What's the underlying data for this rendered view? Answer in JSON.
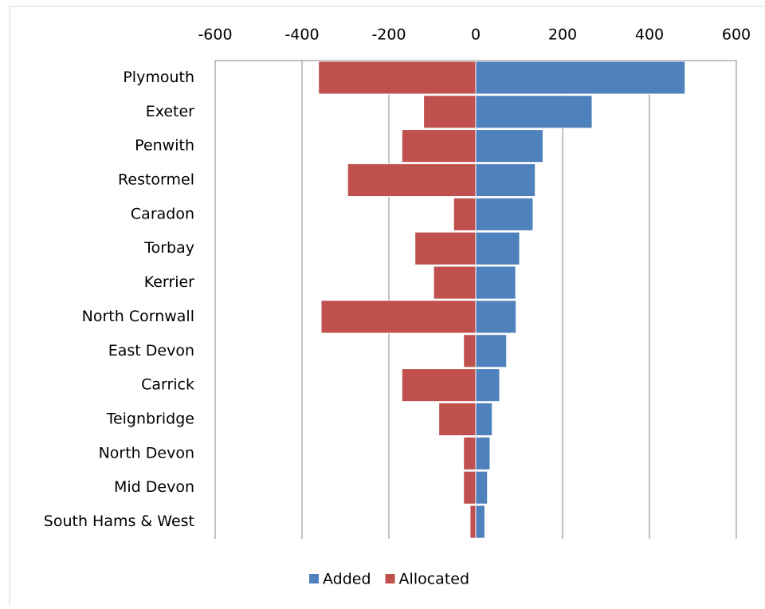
{
  "chart_data": {
    "type": "bar",
    "orientation": "horizontal",
    "categories": [
      "Plymouth",
      "Exeter",
      "Penwith",
      "Restormel",
      "Caradon",
      "Torbay",
      "Kerrier",
      "North Cornwall",
      "East Devon",
      "Carrick",
      "Teignbridge",
      "North Devon",
      "Mid Devon",
      "South Hams & West"
    ],
    "series": [
      {
        "name": "Added",
        "color": "#4f81bd",
        "values": [
          482,
          268,
          155,
          137,
          132,
          101,
          92,
          93,
          71,
          55,
          38,
          33,
          27,
          21
        ]
      },
      {
        "name": "Allocated",
        "color": "#c0504d",
        "values": [
          -362,
          -120,
          -170,
          -295,
          -51,
          -140,
          -97,
          -356,
          -28,
          -170,
          -85,
          -28,
          -28,
          -13
        ]
      }
    ],
    "xlim": [
      -600,
      600
    ],
    "xticks": [
      -600,
      -400,
      -200,
      0,
      200,
      400,
      600
    ],
    "grid": true,
    "legend": "bottom"
  }
}
